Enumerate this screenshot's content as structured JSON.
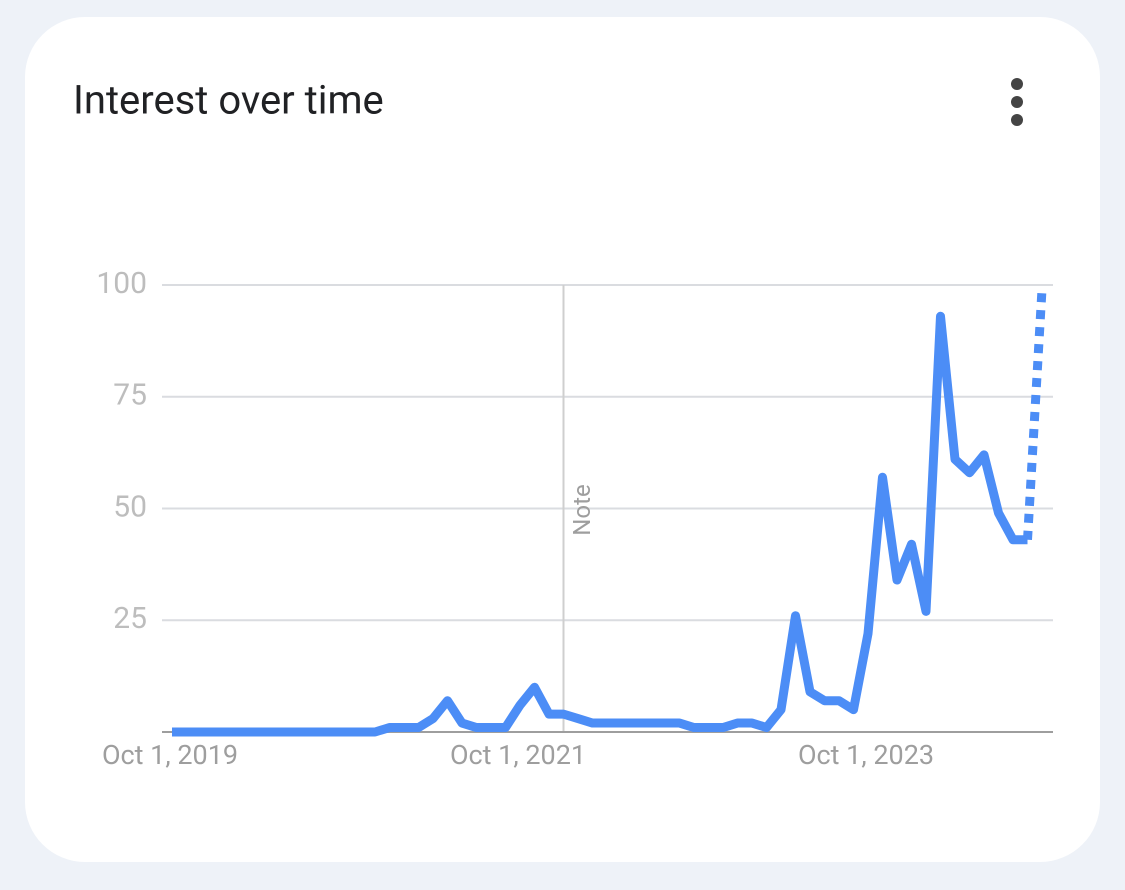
{
  "chart_data": {
    "type": "line",
    "title": "Interest over time",
    "categories": [
      "Oct 1, 2019",
      null,
      null,
      null,
      null,
      null,
      null,
      null,
      null,
      null,
      null,
      null,
      null,
      null,
      null,
      null,
      null,
      null,
      null,
      null,
      null,
      null,
      null,
      null,
      "Oct 1, 2021",
      null,
      null,
      null,
      null,
      null,
      null,
      null,
      null,
      null,
      null,
      null,
      null,
      null,
      null,
      null,
      null,
      null,
      null,
      null,
      null,
      null,
      null,
      null,
      "Oct 1, 2023",
      null,
      null,
      null,
      null,
      null,
      null,
      null,
      null,
      null,
      null,
      null,
      null
    ],
    "series": [
      {
        "color": "#4c8df6",
        "values": [
          0,
          0,
          0,
          0,
          0,
          0,
          0,
          0,
          0,
          0,
          0,
          0,
          0,
          0,
          0,
          1,
          1,
          1,
          3,
          7,
          2,
          1,
          1,
          1,
          6,
          10,
          4,
          4,
          3,
          2,
          2,
          2,
          2,
          2,
          2,
          2,
          1,
          1,
          1,
          2,
          2,
          1,
          5,
          26,
          9,
          7,
          7,
          5,
          22,
          57,
          34,
          42,
          27,
          93,
          61,
          58,
          62,
          49,
          43,
          43,
          99
        ]
      }
    ],
    "partial_last_point": true,
    "annotations": [
      {
        "text": "Note",
        "category_index": 27
      }
    ],
    "ylim": [
      0,
      100
    ],
    "yticks": [
      25,
      50,
      75,
      100
    ],
    "grid": true
  }
}
